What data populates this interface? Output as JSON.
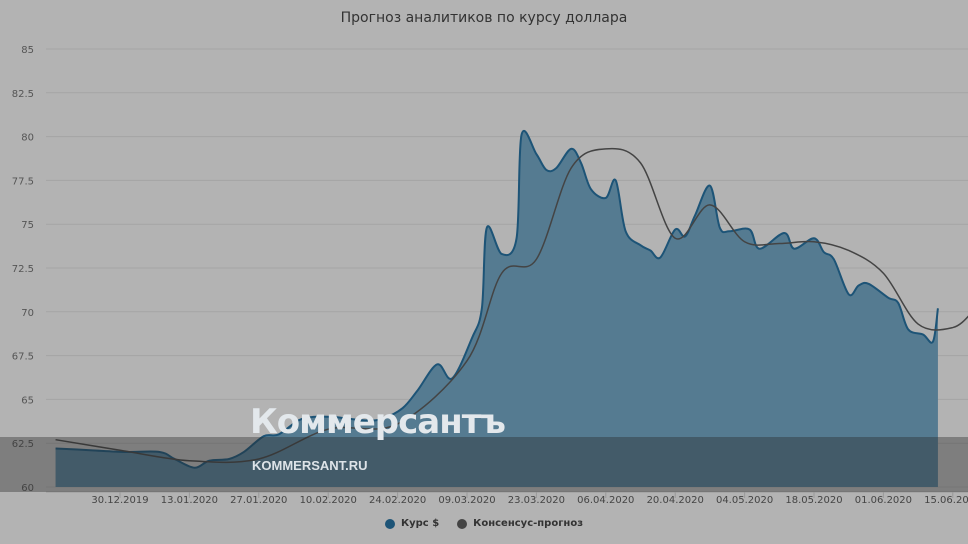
{
  "title": "Прогноз аналитиков по курсу доллара",
  "watermark": {
    "logo": "Коммерсантъ",
    "site": "KOMMERSANT.RU"
  },
  "legend": [
    {
      "label": "Курс $",
      "color": "#1d5477"
    },
    {
      "label": "Консенсус-прогноз",
      "color": "#444444"
    }
  ],
  "chart_data": {
    "type": "area",
    "title": "Прогноз аналитиков по курсу доллара",
    "xlabel": "",
    "ylabel": "",
    "ylim": [
      60,
      85
    ],
    "y_ticks": [
      "60",
      "62.5",
      "65",
      "67.5",
      "70",
      "72.5",
      "75",
      "77.5",
      "80",
      "82.5",
      "85"
    ],
    "x_ticks": [
      "30.12.2019",
      "13.01.2020",
      "27.01.2020",
      "10.02.2020",
      "24.02.2020",
      "09.03.2020",
      "23.03.2020",
      "06.04.2020",
      "20.04.2020",
      "04.05.2020",
      "18.05.2020",
      "01.06.2020",
      "15.06.2020"
    ],
    "grid": true,
    "legend_position": "bottom",
    "series": [
      {
        "name": "Курс $",
        "type": "area",
        "color": "#1d5477",
        "fill": "#557b91",
        "x": [
          "17.12.2019",
          "24.12.2019",
          "31.12.2019",
          "07.01.2020",
          "10.01.2020",
          "14.01.2020",
          "17.01.2020",
          "21.01.2020",
          "24.01.2020",
          "28.01.2020",
          "31.01.2020",
          "04.02.2020",
          "07.02.2020",
          "11.02.2020",
          "14.02.2020",
          "18.02.2020",
          "21.02.2020",
          "25.02.2020",
          "28.02.2020",
          "03.03.2020",
          "06.03.2020",
          "10.03.2020",
          "12.03.2020",
          "13.03.2020",
          "16.03.2020",
          "19.03.2020",
          "20.03.2020",
          "23.03.2020",
          "25.03.2020",
          "27.03.2020",
          "30.03.2020",
          "01.04.2020",
          "03.04.2020",
          "06.04.2020",
          "08.04.2020",
          "10.04.2020",
          "13.04.2020",
          "15.04.2020",
          "17.04.2020",
          "20.04.2020",
          "22.04.2020",
          "24.04.2020",
          "27.04.2020",
          "29.04.2020",
          "01.05.2020",
          "05.05.2020",
          "07.05.2020",
          "12.05.2020",
          "14.05.2020",
          "18.05.2020",
          "20.05.2020",
          "22.05.2020",
          "25.05.2020",
          "27.05.2020",
          "29.05.2020",
          "02.06.2020",
          "04.06.2020",
          "06.06.2020",
          "09.06.2020",
          "11.06.2020",
          "12.06.2020"
        ],
        "values": [
          62.2,
          62.1,
          62.0,
          62.0,
          61.6,
          61.1,
          61.5,
          61.6,
          62.0,
          62.9,
          63.0,
          63.8,
          64.0,
          64.0,
          63.9,
          63.8,
          63.9,
          64.5,
          65.5,
          67.0,
          66.2,
          68.5,
          70.2,
          74.8,
          73.3,
          74.2,
          80.1,
          79.0,
          78.1,
          78.2,
          79.3,
          78.5,
          77.0,
          76.5,
          77.5,
          74.6,
          73.8,
          73.5,
          73.1,
          74.7,
          74.3,
          75.5,
          77.2,
          74.8,
          74.6,
          74.7,
          73.6,
          74.5,
          73.6,
          74.2,
          73.4,
          73.0,
          71.0,
          71.5,
          71.6,
          70.8,
          70.5,
          69.0,
          68.7,
          68.3,
          70.2
        ]
      },
      {
        "name": "Консенсус-прогноз",
        "type": "line",
        "color": "#444444",
        "x": [
          "17.12.2019",
          "30.12.2019",
          "13.01.2020",
          "27.01.2020",
          "10.02.2020",
          "24.02.2020",
          "09.03.2020",
          "16.03.2020",
          "23.03.2020",
          "30.03.2020",
          "06.04.2020",
          "13.04.2020",
          "20.04.2020",
          "27.04.2020",
          "04.05.2020",
          "11.05.2020",
          "18.05.2020",
          "25.05.2020",
          "01.06.2020",
          "08.06.2020",
          "15.06.2020",
          "19.06.2020"
        ],
        "values": [
          62.7,
          62.1,
          61.5,
          61.6,
          63.3,
          63.6,
          67.2,
          72.2,
          73.0,
          78.2,
          79.3,
          78.5,
          74.2,
          76.1,
          74.0,
          73.9,
          74.0,
          73.5,
          72.2,
          69.3,
          69.1,
          70.0
        ]
      }
    ]
  }
}
